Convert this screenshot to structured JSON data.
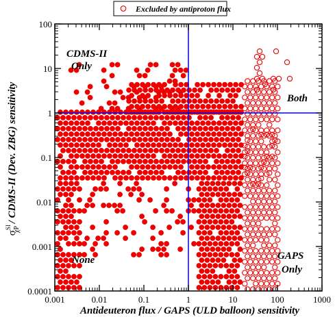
{
  "chart_data": {
    "type": "scatter",
    "title": "",
    "xlabel": "Antideuteron flux / GAPS (ULD balloon) sensitivity",
    "ylabel": {
      "sigma": "σ",
      "sup": "SI",
      "sub": "χP",
      "rest": " / CDMS-II (Dev. ZBG) sensitivity"
    },
    "xscale": "log",
    "yscale": "log",
    "xlim": [
      0.001,
      1000
    ],
    "ylim": [
      0.0001,
      100
    ],
    "x_ticks": [
      "0.001",
      "0.01",
      "0.1",
      "1",
      "10",
      "100",
      "1000"
    ],
    "y_ticks": [
      "0.0001",
      "0.001",
      "0.01",
      "0.1",
      "1",
      "10",
      "100"
    ],
    "grid": false,
    "legend": {
      "placement": "top-center",
      "entries": [
        {
          "label": "Excluded by antiproton flux",
          "marker": "open-circle",
          "color": "#ee0000"
        }
      ]
    },
    "reference_lines": [
      {
        "orientation": "vertical",
        "value": 1,
        "color": "#0000ee"
      },
      {
        "orientation": "horizontal",
        "value": 1,
        "color": "#0000ee"
      }
    ],
    "region_labels": [
      {
        "lines": [
          "CDMS-II",
          "Only"
        ],
        "region": "top-left"
      },
      {
        "lines": [
          "Both"
        ],
        "region": "top-right"
      },
      {
        "lines": [
          "None"
        ],
        "region": "bottom-left"
      },
      {
        "lines": [
          "GAPS",
          "Only"
        ],
        "region": "bottom-right"
      }
    ],
    "series": [
      {
        "name": "",
        "marker": "filled-circle",
        "color": "#ee0000",
        "density_regions": [
          {
            "x_range": [
              0.001,
              16
            ],
            "y_range": [
              0.03,
              1.2
            ],
            "density": "dense"
          },
          {
            "x_range": [
              0.04,
              16
            ],
            "y_range": [
              1,
              5
            ],
            "density": "dense"
          },
          {
            "x_range": [
              1.5,
              16
            ],
            "y_range": [
              0.0001,
              0.03
            ],
            "density": "dense"
          },
          {
            "x_range": [
              0.001,
              0.004
            ],
            "y_range": [
              0.0001,
              0.03
            ],
            "density": "dense"
          },
          {
            "x_range": [
              0.004,
              1.5
            ],
            "y_range": [
              0.0006,
              0.03
            ],
            "density": "scattered"
          },
          {
            "x_range": [
              0.002,
              1
            ],
            "y_range": [
              1.2,
              14
            ],
            "density": "scattered"
          }
        ]
      },
      {
        "name": "Excluded by antiproton flux",
        "marker": "open-circle",
        "color": "#ee0000",
        "density_regions": [
          {
            "x_range": [
              16,
              110
            ],
            "y_range": [
              0.0001,
              6
            ],
            "density": "dense"
          },
          {
            "x_range": [
              30,
              200
            ],
            "y_range": [
              3,
              28
            ],
            "density": "scattered"
          },
          {
            "x_range": [
              16,
              90
            ],
            "y_range": [
              0.02,
              0.5
            ],
            "density": "scattered"
          }
        ]
      }
    ]
  }
}
